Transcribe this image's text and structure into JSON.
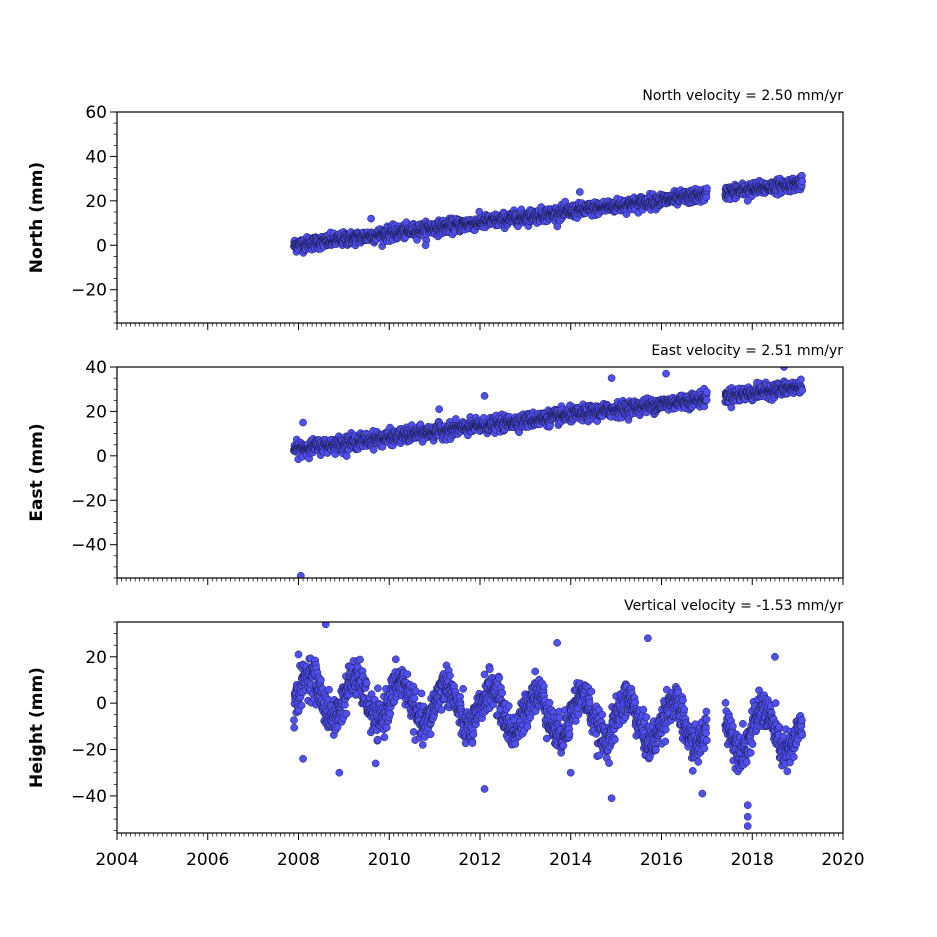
{
  "chart_data": [
    {
      "type": "scatter",
      "annotation": "North velocity = 2.50 mm/yr",
      "xlabel": "",
      "ylabel": "North (mm)",
      "xlim": [
        2004,
        2020
      ],
      "ylim": [
        -35,
        60
      ],
      "yticks": [
        -20,
        0,
        20,
        40,
        60
      ],
      "marker_color": "#5050f0",
      "trend": {
        "start": 2007.9,
        "end": 2019.1,
        "value_at_start": 0,
        "slope": 2.5,
        "seasonal_amp": 0,
        "noise": 1.5
      },
      "gap": [
        2017.0,
        2017.4
      ],
      "outliers": [
        [
          2009.6,
          12
        ],
        [
          2010.8,
          0
        ],
        [
          2014.2,
          24
        ],
        [
          2017.9,
          20
        ]
      ]
    },
    {
      "type": "scatter",
      "annotation": "East velocity = 2.51 mm/yr",
      "xlabel": "",
      "ylabel": "East (mm)",
      "xlim": [
        2004,
        2020
      ],
      "ylim": [
        -55,
        40
      ],
      "yticks": [
        -40,
        -20,
        0,
        20,
        40
      ],
      "marker_color": "#5050f0",
      "trend": {
        "start": 2007.9,
        "end": 2019.1,
        "value_at_start": 3,
        "slope": 2.51,
        "seasonal_amp": 0,
        "noise": 1.6
      },
      "gap": [
        2017.0,
        2017.4
      ],
      "outliers": [
        [
          2008.1,
          15
        ],
        [
          2008.05,
          -54
        ],
        [
          2011.1,
          21
        ],
        [
          2012.1,
          27
        ],
        [
          2014.9,
          35
        ],
        [
          2016.1,
          37
        ],
        [
          2018.7,
          40
        ]
      ]
    },
    {
      "type": "scatter",
      "annotation": "Vertical velocity = -1.53 mm/yr",
      "xlabel": "",
      "ylabel": "Height (mm)",
      "xlim": [
        2004,
        2020
      ],
      "ylim": [
        -56,
        35
      ],
      "yticks": [
        -40,
        -20,
        0,
        20
      ],
      "xticks": [
        2004,
        2006,
        2008,
        2010,
        2012,
        2014,
        2016,
        2018,
        2020
      ],
      "marker_color": "#5050f0",
      "trend": {
        "start": 2007.9,
        "end": 2019.1,
        "value_at_start": 4,
        "slope": -1.53,
        "seasonal_amp": 9,
        "noise": 4
      },
      "gap": [
        2017.0,
        2017.4
      ],
      "outliers": [
        [
          2008.6,
          34
        ],
        [
          2008.9,
          -30
        ],
        [
          2009.7,
          -26
        ],
        [
          2012.1,
          -37
        ],
        [
          2013.7,
          26
        ],
        [
          2014.0,
          -30
        ],
        [
          2014.9,
          -41
        ],
        [
          2015.7,
          28
        ],
        [
          2016.9,
          -39
        ],
        [
          2017.9,
          -44
        ],
        [
          2017.9,
          -49
        ],
        [
          2017.9,
          -53
        ],
        [
          2018.5,
          20
        ],
        [
          2008.0,
          21
        ],
        [
          2008.1,
          -24
        ]
      ]
    }
  ]
}
